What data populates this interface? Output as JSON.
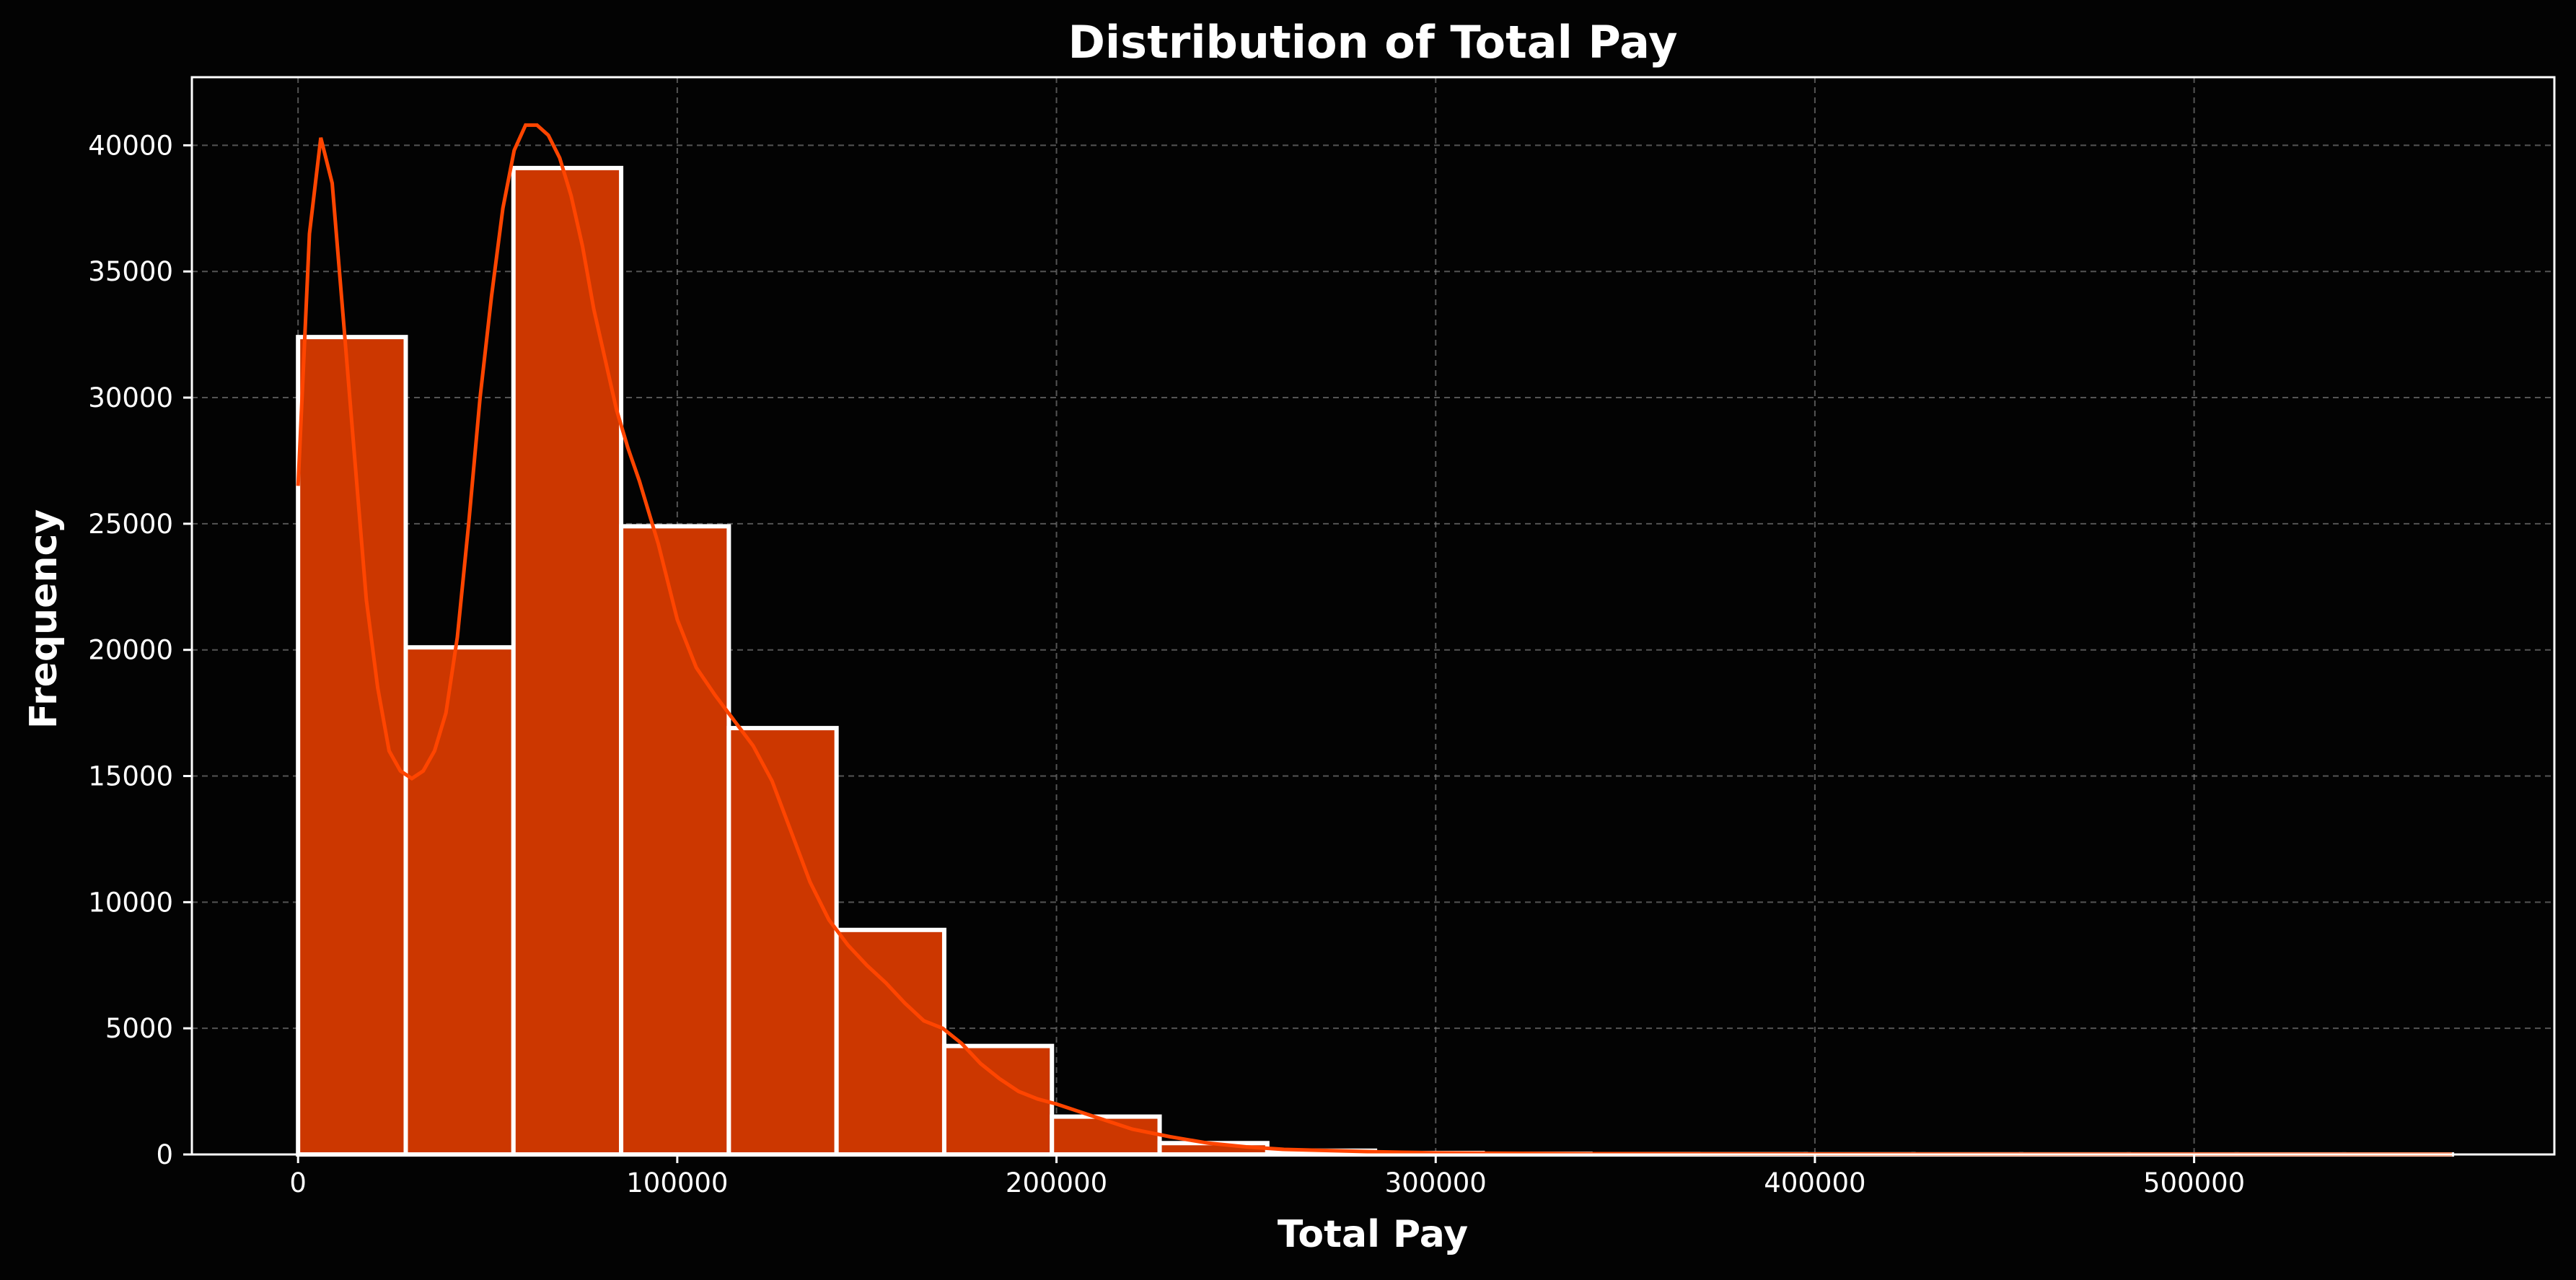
{
  "colors": {
    "background": "#030303",
    "bar_fill": "#cc3700",
    "bar_edge": "#ffffff",
    "kde_line": "#ff4500",
    "grid": "#8a8a8a",
    "text": "#ffffff"
  },
  "chart_data": {
    "type": "bar",
    "title": "Distribution of Total Pay",
    "xlabel": "Total Pay",
    "ylabel": "Frequency",
    "xlim": [
      -28000,
      595000
    ],
    "ylim": [
      0,
      42700
    ],
    "grid": true,
    "x_ticks": [
      0,
      100000,
      200000,
      300000,
      400000,
      500000
    ],
    "x_tick_labels": [
      "0",
      "100000",
      "200000",
      "300000",
      "400000",
      "500000"
    ],
    "y_ticks": [
      0,
      5000,
      10000,
      15000,
      20000,
      25000,
      30000,
      35000,
      40000
    ],
    "y_tick_labels": [
      "0",
      "5000",
      "10000",
      "15000",
      "20000",
      "25000",
      "30000",
      "35000",
      "40000"
    ],
    "bins": [
      {
        "x0": 0,
        "x1": 28400,
        "value": 32400
      },
      {
        "x0": 28400,
        "x1": 56800,
        "value": 20100
      },
      {
        "x0": 56800,
        "x1": 85200,
        "value": 39100
      },
      {
        "x0": 85200,
        "x1": 113600,
        "value": 24900
      },
      {
        "x0": 113600,
        "x1": 142000,
        "value": 16900
      },
      {
        "x0": 142000,
        "x1": 170400,
        "value": 8900
      },
      {
        "x0": 170400,
        "x1": 198800,
        "value": 4300
      },
      {
        "x0": 198800,
        "x1": 227200,
        "value": 1500
      },
      {
        "x0": 227200,
        "x1": 255600,
        "value": 450
      },
      {
        "x0": 255600,
        "x1": 284000,
        "value": 150
      },
      {
        "x0": 284000,
        "x1": 312400,
        "value": 60
      },
      {
        "x0": 312400,
        "x1": 340800,
        "value": 30
      },
      {
        "x0": 340800,
        "x1": 369200,
        "value": 15
      },
      {
        "x0": 369200,
        "x1": 397600,
        "value": 10
      },
      {
        "x0": 397600,
        "x1": 426000,
        "value": 6
      },
      {
        "x0": 426000,
        "x1": 454400,
        "value": 4
      },
      {
        "x0": 454400,
        "x1": 482800,
        "value": 3
      },
      {
        "x0": 482800,
        "x1": 511200,
        "value": 2
      },
      {
        "x0": 511200,
        "x1": 539600,
        "value": 2
      },
      {
        "x0": 539600,
        "x1": 568000,
        "value": 1
      }
    ],
    "kde": {
      "x": [
        0,
        3000,
        6000,
        9000,
        12000,
        15000,
        18000,
        21000,
        24000,
        27000,
        30000,
        33000,
        36000,
        39000,
        42000,
        45000,
        48000,
        51000,
        54000,
        57000,
        60000,
        63000,
        66000,
        69000,
        72000,
        75000,
        78000,
        81000,
        84000,
        87000,
        90000,
        95000,
        100000,
        105000,
        110000,
        115000,
        120000,
        125000,
        130000,
        135000,
        140000,
        145000,
        150000,
        155000,
        160000,
        165000,
        170000,
        175000,
        180000,
        185000,
        190000,
        195000,
        200000,
        210000,
        220000,
        230000,
        240000,
        250000,
        260000,
        280000,
        300000,
        340000,
        400000,
        450000,
        500000,
        568000
      ],
      "y": [
        26500,
        36500,
        40300,
        38500,
        33000,
        27500,
        22000,
        18500,
        16000,
        15200,
        14900,
        15200,
        16000,
        17500,
        20500,
        25000,
        30000,
        34000,
        37500,
        39800,
        40800,
        40800,
        40400,
        39500,
        38000,
        36000,
        33500,
        31500,
        29500,
        28000,
        26700,
        24200,
        21200,
        19300,
        18200,
        17200,
        16200,
        14800,
        12800,
        10800,
        9300,
        8300,
        7500,
        6800,
        6000,
        5300,
        5000,
        4400,
        3600,
        3000,
        2500,
        2200,
        2000,
        1500,
        1000,
        700,
        450,
        300,
        200,
        120,
        60,
        30,
        15,
        8,
        5,
        3
      ]
    }
  }
}
